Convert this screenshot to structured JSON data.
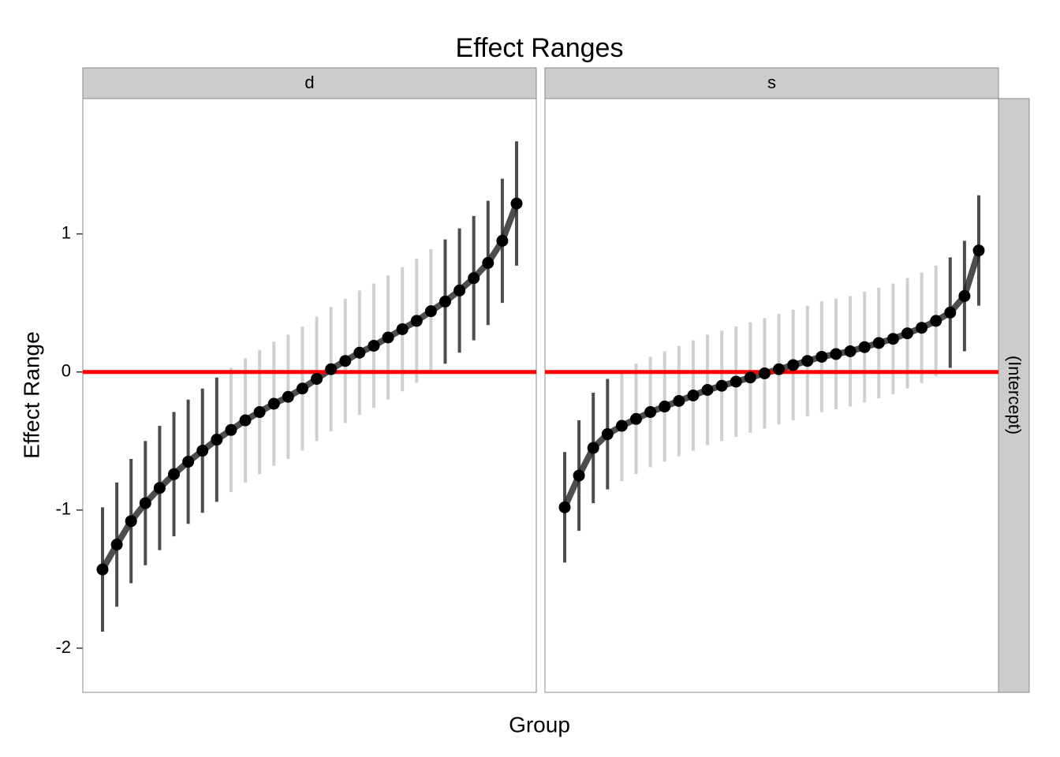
{
  "chart_data": {
    "type": "caterpillar",
    "title": "Effect Ranges",
    "x_label": "Group",
    "y_label": "Effect Range",
    "row_strip": "(Intercept)",
    "ylim": [
      -2.32,
      1.98
    ],
    "yticks": [
      -2,
      -1,
      0,
      1
    ],
    "reference_line": 0,
    "reference_color": "#ff0000",
    "significant_color": "#000000",
    "nonsignificant_color": "#bbbbbb",
    "panels": [
      {
        "name": "d",
        "estimate": [
          -1.43,
          -1.25,
          -1.08,
          -0.95,
          -0.84,
          -0.74,
          -0.65,
          -0.57,
          -0.49,
          -0.42,
          -0.35,
          -0.29,
          -0.23,
          -0.18,
          -0.12,
          -0.05,
          0.02,
          0.08,
          0.14,
          0.19,
          0.25,
          0.31,
          0.37,
          0.44,
          0.51,
          0.59,
          0.68,
          0.79,
          0.95,
          1.22
        ],
        "lower": [
          -1.88,
          -1.7,
          -1.53,
          -1.4,
          -1.29,
          -1.19,
          -1.1,
          -1.02,
          -0.94,
          -0.87,
          -0.8,
          -0.74,
          -0.68,
          -0.63,
          -0.57,
          -0.5,
          -0.43,
          -0.37,
          -0.31,
          -0.26,
          -0.2,
          -0.14,
          -0.08,
          -0.01,
          0.06,
          0.14,
          0.23,
          0.34,
          0.5,
          0.77
        ],
        "upper": [
          -0.98,
          -0.8,
          -0.63,
          -0.5,
          -0.39,
          -0.29,
          -0.2,
          -0.12,
          -0.04,
          0.03,
          0.1,
          0.16,
          0.22,
          0.27,
          0.33,
          0.4,
          0.47,
          0.53,
          0.59,
          0.64,
          0.7,
          0.76,
          0.82,
          0.89,
          0.96,
          1.04,
          1.13,
          1.24,
          1.4,
          1.67
        ]
      },
      {
        "name": "s",
        "estimate": [
          -0.98,
          -0.75,
          -0.55,
          -0.45,
          -0.39,
          -0.34,
          -0.29,
          -0.25,
          -0.21,
          -0.17,
          -0.13,
          -0.1,
          -0.07,
          -0.04,
          -0.01,
          0.02,
          0.05,
          0.08,
          0.11,
          0.13,
          0.15,
          0.18,
          0.21,
          0.24,
          0.28,
          0.32,
          0.37,
          0.43,
          0.55,
          0.88
        ],
        "lower": [
          -1.38,
          -1.15,
          -0.95,
          -0.85,
          -0.79,
          -0.74,
          -0.69,
          -0.65,
          -0.61,
          -0.57,
          -0.53,
          -0.5,
          -0.47,
          -0.44,
          -0.41,
          -0.38,
          -0.35,
          -0.32,
          -0.29,
          -0.27,
          -0.25,
          -0.22,
          -0.19,
          -0.16,
          -0.12,
          -0.08,
          -0.03,
          0.03,
          0.15,
          0.48
        ],
        "upper": [
          -0.58,
          -0.35,
          -0.15,
          -0.05,
          0.01,
          0.06,
          0.11,
          0.15,
          0.19,
          0.23,
          0.27,
          0.3,
          0.33,
          0.36,
          0.39,
          0.42,
          0.45,
          0.48,
          0.51,
          0.53,
          0.55,
          0.58,
          0.61,
          0.64,
          0.68,
          0.72,
          0.77,
          0.83,
          0.95,
          1.28
        ]
      }
    ]
  }
}
